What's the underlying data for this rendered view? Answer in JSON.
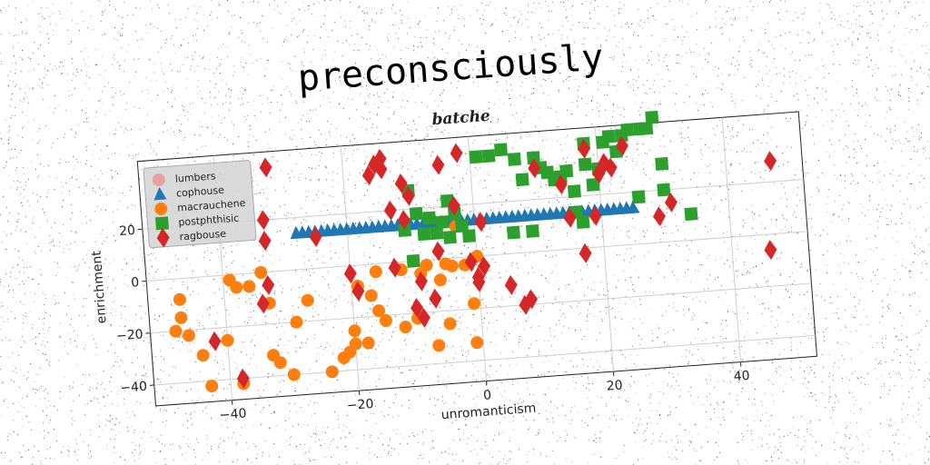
{
  "chart_data": {
    "type": "scatter",
    "title": "preconsciously",
    "subtitle": "batche",
    "xlabel": "unromanticism",
    "ylabel": "enrichment",
    "xlim": [
      -52,
      52
    ],
    "ylim": [
      -48,
      46
    ],
    "xticks": [
      -40,
      -20,
      0,
      20,
      40
    ],
    "yticks": [
      -40,
      -20,
      0,
      20
    ],
    "grid": true,
    "legend_position": "top-left",
    "series": [
      {
        "name": "lumbers",
        "marker": "circle",
        "color": "#e8a0a0",
        "points": []
      },
      {
        "name": "cophouse",
        "marker": "triangle",
        "color": "#1f77b4",
        "points": [
          [
            -28,
            14
          ],
          [
            -27,
            14
          ],
          [
            -26,
            14
          ],
          [
            -25,
            14
          ],
          [
            -24,
            14
          ],
          [
            -23,
            14
          ],
          [
            -22,
            14
          ],
          [
            -21,
            14
          ],
          [
            -20,
            14
          ],
          [
            -19,
            14
          ],
          [
            -18,
            14
          ],
          [
            -17,
            14
          ],
          [
            -16,
            14
          ],
          [
            -15,
            14
          ],
          [
            -14,
            14
          ],
          [
            -13,
            14
          ],
          [
            -12,
            14
          ],
          [
            -11,
            14
          ],
          [
            -10,
            14
          ],
          [
            -9,
            14
          ],
          [
            -8,
            14
          ],
          [
            -7,
            14
          ],
          [
            -6,
            14
          ],
          [
            -5,
            14
          ],
          [
            -4,
            14
          ],
          [
            -3,
            14
          ],
          [
            -2,
            14
          ],
          [
            -1,
            14
          ],
          [
            0,
            14
          ],
          [
            1,
            14
          ],
          [
            2,
            14
          ],
          [
            3,
            14
          ],
          [
            4,
            14
          ],
          [
            5,
            14
          ],
          [
            6,
            14
          ],
          [
            7,
            14
          ],
          [
            8,
            14
          ],
          [
            9,
            14
          ],
          [
            10,
            14
          ],
          [
            11,
            14
          ],
          [
            12,
            14
          ],
          [
            13,
            14
          ],
          [
            14,
            14
          ],
          [
            15,
            14
          ],
          [
            16,
            14
          ],
          [
            17,
            14
          ],
          [
            18,
            14
          ],
          [
            19,
            14
          ],
          [
            20,
            14
          ],
          [
            21,
            14
          ],
          [
            22,
            14
          ],
          [
            23,
            14
          ],
          [
            24,
            14
          ],
          [
            25,
            14
          ]
        ]
      },
      {
        "name": "macrauchene",
        "marker": "circle",
        "color": "#ff7f0e",
        "points": [
          [
            -47,
            -8
          ],
          [
            -48,
            -20
          ],
          [
            -47,
            -15
          ],
          [
            -46,
            -22
          ],
          [
            -44,
            -30
          ],
          [
            -43,
            -42
          ],
          [
            -38,
            -42
          ],
          [
            -40,
            -25
          ],
          [
            -39,
            -2
          ],
          [
            -38,
            -5
          ],
          [
            -36,
            -5
          ],
          [
            -34,
            0
          ],
          [
            -33,
            -12
          ],
          [
            -33,
            -32
          ],
          [
            -32,
            -35
          ],
          [
            -30,
            -40
          ],
          [
            -29,
            -20
          ],
          [
            -27,
            -12
          ],
          [
            -24,
            -40
          ],
          [
            -22,
            -35
          ],
          [
            -21,
            -33
          ],
          [
            -20,
            -25
          ],
          [
            -20,
            -30
          ],
          [
            -19,
            -8
          ],
          [
            -18,
            -30
          ],
          [
            -17,
            -12
          ],
          [
            -16,
            -18
          ],
          [
            -16,
            -3
          ],
          [
            -15,
            -22
          ],
          [
            -12,
            -25
          ],
          [
            -12,
            -3
          ],
          [
            -10,
            -22
          ],
          [
            -9,
            -5
          ],
          [
            -8,
            -2
          ],
          [
            -7,
            -33
          ],
          [
            -6,
            -8
          ],
          [
            -5,
            -25
          ],
          [
            -4,
            -3
          ],
          [
            -2,
            -3
          ],
          [
            -1,
            -18
          ],
          [
            -1,
            -33
          ],
          [
            0,
            0
          ],
          [
            -3,
            12
          ],
          [
            -5,
            -2
          ]
        ]
      },
      {
        "name": "postphthisic",
        "marker": "square",
        "color": "#2ca02c",
        "points": [
          [
            -10,
            27
          ],
          [
            -11,
            12
          ],
          [
            -10,
            0
          ],
          [
            -9,
            18
          ],
          [
            -8,
            10
          ],
          [
            -7,
            16
          ],
          [
            -6,
            10
          ],
          [
            -5,
            14
          ],
          [
            -4,
            22
          ],
          [
            -4,
            8
          ],
          [
            -3,
            17
          ],
          [
            -2,
            12
          ],
          [
            -1,
            8
          ],
          [
            1,
            38
          ],
          [
            3,
            38
          ],
          [
            5,
            40
          ],
          [
            6,
            8
          ],
          [
            7,
            36
          ],
          [
            8,
            28
          ],
          [
            9,
            8
          ],
          [
            10,
            36
          ],
          [
            11,
            32
          ],
          [
            12,
            30
          ],
          [
            13,
            27
          ],
          [
            14,
            28
          ],
          [
            15,
            30
          ],
          [
            16,
            14
          ],
          [
            16,
            22
          ],
          [
            17,
            10
          ],
          [
            18,
            40
          ],
          [
            18,
            32
          ],
          [
            19,
            24
          ],
          [
            20,
            30
          ],
          [
            21,
            40
          ],
          [
            22,
            42
          ],
          [
            23,
            36
          ],
          [
            24,
            42
          ],
          [
            25,
            44
          ],
          [
            26,
            18
          ],
          [
            27,
            44
          ],
          [
            28,
            44
          ],
          [
            29,
            48
          ],
          [
            30,
            30
          ],
          [
            30,
            20
          ],
          [
            34,
            10
          ]
        ]
      },
      {
        "name": "ragbouse",
        "marker": "diamond",
        "color": "#d62728",
        "points": [
          [
            -32,
            40
          ],
          [
            -33,
            20
          ],
          [
            -33,
            12
          ],
          [
            -33,
            -5
          ],
          [
            -34,
            -12
          ],
          [
            -38,
            -40
          ],
          [
            -42,
            -25
          ],
          [
            -25,
            12
          ],
          [
            -20,
            -3
          ],
          [
            -19,
            -10
          ],
          [
            -16,
            34
          ],
          [
            -15,
            38
          ],
          [
            -14,
            40
          ],
          [
            -14,
            36
          ],
          [
            -13,
            20
          ],
          [
            -13,
            -2
          ],
          [
            -11,
            30
          ],
          [
            -11,
            16
          ],
          [
            -10,
            25
          ],
          [
            -10,
            -18
          ],
          [
            -9,
            -8
          ],
          [
            -9,
            -22
          ],
          [
            -7,
            -15
          ],
          [
            -6,
            3
          ],
          [
            -5,
            36
          ],
          [
            -3,
            20
          ],
          [
            -2,
            40
          ],
          [
            -1,
            -2
          ],
          [
            0,
            -8
          ],
          [
            0,
            -10
          ],
          [
            1,
            -4
          ],
          [
            1,
            13
          ],
          [
            5,
            -12
          ],
          [
            7,
            -20
          ],
          [
            8,
            -18
          ],
          [
            10,
            32
          ],
          [
            14,
            25
          ],
          [
            15,
            12
          ],
          [
            17,
            -2
          ],
          [
            18,
            38
          ],
          [
            19,
            12
          ],
          [
            20,
            28
          ],
          [
            21,
            32
          ],
          [
            22,
            30
          ],
          [
            24,
            38
          ],
          [
            29,
            10
          ],
          [
            31,
            15
          ],
          [
            47,
            28
          ],
          [
            46,
            -6
          ]
        ]
      }
    ]
  }
}
